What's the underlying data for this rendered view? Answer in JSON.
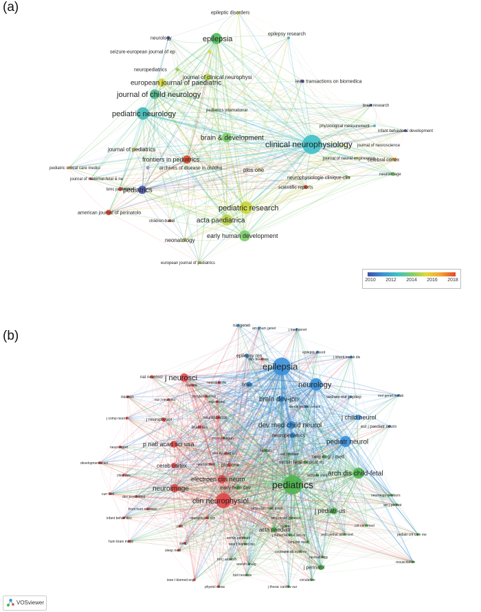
{
  "panels": {
    "a": {
      "label": "(a)",
      "legend_ticks": [
        "2010",
        "2012",
        "2014",
        "2016",
        "2018"
      ],
      "colors": [
        "#3a4ea8",
        "#3f8fd0",
        "#3fc0c8",
        "#7dce6b",
        "#e2d83a",
        "#f3a234",
        "#e2462a"
      ],
      "nodes": [
        {
          "label": "epileptic disorders",
          "color": "#e2d83a"
        },
        {
          "label": "neurology",
          "color": "#5a4fb3"
        },
        {
          "label": "epilepsia",
          "color": "#52b95a"
        },
        {
          "label": "seizure-european journal of ep",
          "color": "#e2d83a"
        },
        {
          "label": "epilepsy research",
          "color": "#4fa8c8"
        },
        {
          "label": "neuropediatrics",
          "color": "#9ac85a"
        },
        {
          "label": "european journal of paediatric",
          "color": "#d9d63a"
        },
        {
          "label": "journal of clinical neurophysi",
          "color": "#b8d24a"
        },
        {
          "label": "ieee transactions on biomedica",
          "color": "#5a4fb3"
        },
        {
          "label": "journal of child neurology",
          "color": "#4fb98a"
        },
        {
          "label": "brain research",
          "color": "#3a4ea8"
        },
        {
          "label": "pediatric neurology",
          "color": "#3fb6b2"
        },
        {
          "label": "pediatrics international",
          "color": "#e2d83a"
        },
        {
          "label": "physiological measurement",
          "color": "#4fa8c8"
        },
        {
          "label": "infant behavioral development",
          "color": "#3a4ea8"
        },
        {
          "label": "brain & development",
          "color": "#7dce6b"
        },
        {
          "label": "clinical neurophysiology",
          "color": "#3fc0c8"
        },
        {
          "label": "journal of neuroscience",
          "color": "#e2d83a"
        },
        {
          "label": "journal of pediatrics",
          "color": "#d9d63a"
        },
        {
          "label": "journal of neural engineering",
          "color": "#e2d83a"
        },
        {
          "label": "cerebral cortex",
          "color": "#f3a234"
        },
        {
          "label": "frontiers in pediatrics",
          "color": "#e2462a"
        },
        {
          "label": "pediatric critical care medici",
          "color": "#f3a234"
        },
        {
          "label": "archives of disease in childho",
          "color": "#9a8fd0"
        },
        {
          "label": "plos one",
          "color": "#e2d83a"
        },
        {
          "label": "neurophysiologie clinique-clin",
          "color": "#9ac85a"
        },
        {
          "label": "neuroimage",
          "color": "#7dce6b"
        },
        {
          "label": "journal of maternal-fetal & ne",
          "color": "#e2462a"
        },
        {
          "label": "bmc pediatrics",
          "color": "#e2462a"
        },
        {
          "label": "pediatrics",
          "color": "#4a55b0"
        },
        {
          "label": "scientific reports",
          "color": "#e2462a"
        },
        {
          "label": "pediatric research",
          "color": "#c8d43a"
        },
        {
          "label": "american journal of perinatolo",
          "color": "#e2462a"
        },
        {
          "label": "children-basel",
          "color": "#e2462a"
        },
        {
          "label": "acta paediatrica",
          "color": "#b8d24a"
        },
        {
          "label": "neonatology",
          "color": "#c8d43a"
        },
        {
          "label": "early human development",
          "color": "#7dce6b"
        },
        {
          "label": "european journal of pediatrics",
          "color": "#c8d43a"
        }
      ]
    },
    "b": {
      "label": "(b)",
      "colors": {
        "red": "#e04848",
        "green": "#4fb34f",
        "blue": "#3a8fd8"
      },
      "nodes": [
        {
          "label": "nat genet",
          "cluster": "blue"
        },
        {
          "label": "am j hum genet",
          "cluster": "blue"
        },
        {
          "label": "j med genet",
          "cluster": "blue"
        },
        {
          "label": "epileptic disord",
          "cluster": "blue"
        },
        {
          "label": "j inherit metab dis",
          "cluster": "blue"
        },
        {
          "label": "dev brain res",
          "cluster": "red"
        },
        {
          "label": "epilepsy res",
          "cluster": "blue"
        },
        {
          "label": "epilepsia",
          "cluster": "blue"
        },
        {
          "label": "nat neurosci",
          "cluster": "red"
        },
        {
          "label": "j neurosci",
          "cluster": "red"
        },
        {
          "label": "neurobiol dis",
          "cluster": "red"
        },
        {
          "label": "nature",
          "cluster": "red"
        },
        {
          "label": "brain",
          "cluster": "blue"
        },
        {
          "label": "neurology",
          "cluster": "blue"
        },
        {
          "label": "mol genet metab",
          "cluster": "blue"
        },
        {
          "label": "neuron",
          "cluster": "red"
        },
        {
          "label": "eur j neurosci",
          "cluster": "red"
        },
        {
          "label": "trends neurosci",
          "cluster": "red"
        },
        {
          "label": "brain dev-jpn",
          "cluster": "blue"
        },
        {
          "label": "seizure-eur j epilep",
          "cluster": "blue"
        },
        {
          "label": "exp neurol",
          "cluster": "red"
        },
        {
          "label": "semin pediatr neurol",
          "cluster": "blue"
        },
        {
          "label": "j comp neurol",
          "cluster": "red"
        },
        {
          "label": "j neurophysiol",
          "cluster": "red"
        },
        {
          "label": "neuroscience",
          "cluster": "red"
        },
        {
          "label": "j child neurol",
          "cluster": "blue"
        },
        {
          "label": "brain res",
          "cluster": "red"
        },
        {
          "label": "dev med child neurol",
          "cluster": "blue"
        },
        {
          "label": "eur j paediatr neuro",
          "cluster": "blue"
        },
        {
          "label": "j physiol-london",
          "cluster": "red"
        },
        {
          "label": "p natl acad sci usa",
          "cluster": "red"
        },
        {
          "label": "neuropediatrics",
          "cluster": "blue"
        },
        {
          "label": "pediatr neurol",
          "cluster": "blue"
        },
        {
          "label": "neuroreport",
          "cluster": "red"
        },
        {
          "label": "ann ny acad sci",
          "cluster": "red"
        },
        {
          "label": "lancet",
          "cluster": "green"
        },
        {
          "label": "eur j pediatr",
          "cluster": "green"
        },
        {
          "label": "new engl j med",
          "cluster": "green"
        },
        {
          "label": "developmental sci",
          "cluster": "red"
        },
        {
          "label": "neurosci lett",
          "cluster": "red"
        },
        {
          "label": "plos one",
          "cluster": "red"
        },
        {
          "label": "semin fetal neonat m",
          "cluster": "green"
        },
        {
          "label": "cereb cortex",
          "cluster": "red"
        },
        {
          "label": "arch dis child",
          "cluster": "green"
        },
        {
          "label": "child dev",
          "cluster": "red"
        },
        {
          "label": "pediatrics",
          "cluster": "green"
        },
        {
          "label": "arch dis child-fetal",
          "cluster": "green"
        },
        {
          "label": "electroen clin neuro",
          "cluster": "red"
        },
        {
          "label": "curr biol",
          "cluster": "red"
        },
        {
          "label": "neuroimage",
          "cluster": "red"
        },
        {
          "label": "early hum dev",
          "cluster": "green"
        },
        {
          "label": "dev psychobiol",
          "cluster": "red"
        },
        {
          "label": "clin neurophysiol",
          "cluster": "red"
        },
        {
          "label": "neurology newborn",
          "cluster": "green"
        },
        {
          "label": "jama-j am med assoc",
          "cluster": "green"
        },
        {
          "label": "am j perinat",
          "cluster": "green"
        },
        {
          "label": "front hum neurosci",
          "cluster": "red"
        },
        {
          "label": "am j obstet gynecol",
          "cluster": "green"
        },
        {
          "label": "j pediatr-us",
          "cluster": "green"
        },
        {
          "label": "infant behav dev",
          "cluster": "red"
        },
        {
          "label": "neurophysiol clin",
          "cluster": "red"
        },
        {
          "label": "stroke",
          "cluster": "green"
        },
        {
          "label": "j maternal-fetal neo m",
          "cluster": "green"
        },
        {
          "label": "crit care med",
          "cluster": "green"
        },
        {
          "label": "acta paediatr",
          "cluster": "green"
        },
        {
          "label": "pain",
          "cluster": "red"
        },
        {
          "label": "arch pediat adol med",
          "cluster": "green"
        },
        {
          "label": "pediatr crit care me",
          "cluster": "green"
        },
        {
          "label": "semin perinatol",
          "cluster": "green"
        },
        {
          "label": "hum brain mapp",
          "cluster": "red"
        },
        {
          "label": "sleep",
          "cluster": "red"
        },
        {
          "label": "ieee t biomed bio",
          "cluster": "green"
        },
        {
          "label": "bmj-brit med j",
          "cluster": "green"
        },
        {
          "label": "cochrane db syst rev",
          "cluster": "green"
        },
        {
          "label": "sleep med",
          "cluster": "red"
        },
        {
          "label": "brit j anaesth",
          "cluster": "green"
        },
        {
          "label": "anesth analg",
          "cluster": "green"
        },
        {
          "label": "resuscitation",
          "cluster": "green"
        },
        {
          "label": "j perinatol",
          "cluster": "green"
        },
        {
          "label": "neonatology",
          "cluster": "green"
        },
        {
          "label": "ieee t biomed eng",
          "cluster": "red"
        },
        {
          "label": "biol neonate",
          "cluster": "green"
        },
        {
          "label": "circulation",
          "cluster": "green"
        },
        {
          "label": "physiol meas",
          "cluster": "red"
        },
        {
          "label": "j thorac cardiov sur",
          "cluster": "green"
        }
      ]
    }
  },
  "brand": {
    "name": "VOSviewer",
    "icon": "vosviewer-logo-icon"
  }
}
